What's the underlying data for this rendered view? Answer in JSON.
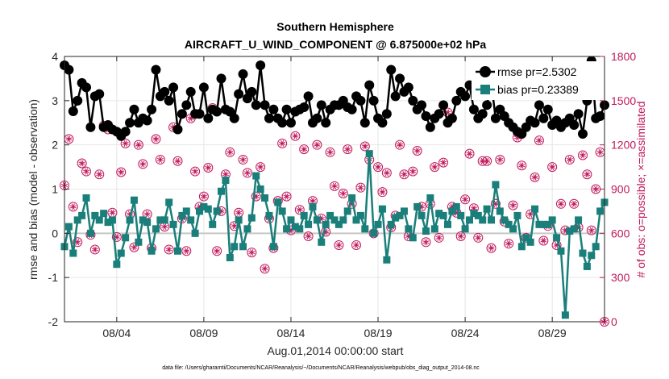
{
  "chart_data": {
    "type": "line",
    "title": "Southern Hemisphere",
    "subtitle": "AIRCRAFT_U_WIND_COMPONENT @ 6.875000e+02 hPa",
    "xlabel": "Aug.01,2014 00:00:00 start",
    "ylabel": "rmse and bias (model - observation)",
    "y2label": "# of obs: o=possible; ×=assimilated",
    "footnote": "data file: /Users/gharamti/Documents/NCAR/Reanalysis/~/Documents/NCAR/Reanalysis/webpub/obs_diag_output_2014-08.nc",
    "x_unit": "days since Aug.01,2014 00:00:00",
    "xlim": [
      0.0,
      31.0
    ],
    "ylim": [
      -2,
      4
    ],
    "y2lim": [
      0,
      1800
    ],
    "x_ticks": [
      3,
      8,
      13,
      18,
      23,
      28
    ],
    "x_tick_labels": [
      "08/04",
      "08/09",
      "08/14",
      "08/19",
      "08/24",
      "08/29"
    ],
    "y_ticks": [
      -2,
      -1,
      0,
      1,
      2,
      3,
      4
    ],
    "y_tick_labels": [
      "-2",
      "-1",
      "0",
      "1",
      "2",
      "3",
      "4"
    ],
    "y2_ticks": [
      0,
      300,
      600,
      900,
      1200,
      1500,
      1800
    ],
    "y2_tick_labels": [
      "0",
      "300",
      "600",
      "900",
      "1200",
      "1500",
      "1800"
    ],
    "zero_line": 0,
    "legend": {
      "position": "top-right",
      "entries": [
        "rmse pr=2.5302",
        "bias pr=0.23389"
      ]
    },
    "x": [
      0.0,
      0.25,
      0.5,
      0.75,
      1.0,
      1.25,
      1.5,
      1.75,
      2.0,
      2.25,
      2.5,
      2.75,
      3.0,
      3.25,
      3.5,
      3.75,
      4.0,
      4.25,
      4.5,
      4.75,
      5.0,
      5.25,
      5.5,
      5.75,
      6.0,
      6.25,
      6.5,
      6.75,
      7.0,
      7.25,
      7.5,
      7.75,
      8.0,
      8.25,
      8.5,
      8.75,
      9.0,
      9.25,
      9.5,
      9.75,
      10.0,
      10.25,
      10.5,
      10.75,
      11.0,
      11.25,
      11.5,
      11.75,
      12.0,
      12.25,
      12.5,
      12.75,
      13.0,
      13.25,
      13.5,
      13.75,
      14.0,
      14.25,
      14.5,
      14.75,
      15.0,
      15.25,
      15.5,
      15.75,
      16.0,
      16.25,
      16.5,
      16.75,
      17.0,
      17.25,
      17.5,
      17.75,
      18.0,
      18.25,
      18.5,
      18.75,
      19.0,
      19.25,
      19.5,
      19.75,
      20.0,
      20.25,
      20.5,
      20.75,
      21.0,
      21.25,
      21.5,
      21.75,
      22.0,
      22.25,
      22.5,
      22.75,
      23.0,
      23.25,
      23.5,
      23.75,
      24.0,
      24.25,
      24.5,
      24.75,
      25.0,
      25.25,
      25.5,
      25.75,
      26.0,
      26.25,
      26.5,
      26.75,
      27.0,
      27.25,
      27.5,
      27.75,
      28.0,
      28.25,
      28.5,
      28.75,
      29.0,
      29.25,
      29.5,
      29.75,
      30.0,
      30.25,
      30.5,
      30.75,
      31.0
    ],
    "series": [
      {
        "name": "rmse pr=2.5302",
        "axis": "left",
        "color": "#000000",
        "marker": "circle",
        "values": [
          3.8,
          3.7,
          2.76,
          3.0,
          3.4,
          3.3,
          2.4,
          3.1,
          3.15,
          2.4,
          2.45,
          2.35,
          2.3,
          2.2,
          2.3,
          2.5,
          2.8,
          2.5,
          2.6,
          2.55,
          2.8,
          3.7,
          3.1,
          3.2,
          3.0,
          3.3,
          2.35,
          2.7,
          2.9,
          3.2,
          2.7,
          2.7,
          3.3,
          2.6,
          2.8,
          2.75,
          3.5,
          2.8,
          2.75,
          2.6,
          3.15,
          3.6,
          3.05,
          3.2,
          2.9,
          3.8,
          2.9,
          2.6,
          2.8,
          2.6,
          2.5,
          2.8,
          2.5,
          2.75,
          2.8,
          2.85,
          3.1,
          2.5,
          2.6,
          2.9,
          2.5,
          2.8,
          2.9,
          2.9,
          3.0,
          2.85,
          2.8,
          3.1,
          3.0,
          2.5,
          3.35,
          3.0,
          2.6,
          2.5,
          2.7,
          3.7,
          3.1,
          3.5,
          3.2,
          3.3,
          3.0,
          2.8,
          2.9,
          2.65,
          2.4,
          2.6,
          2.7,
          2.9,
          2.5,
          2.6,
          3.0,
          3.2,
          3.1,
          3.35,
          2.8,
          2.6,
          2.7,
          2.9,
          3.4,
          2.6,
          2.8,
          2.65,
          2.5,
          2.4,
          2.3,
          2.25,
          2.4,
          2.55,
          2.5,
          2.9,
          2.6,
          2.8,
          2.45,
          2.55,
          2.4,
          2.5,
          2.6,
          2.45,
          2.7,
          2.25,
          3.0,
          3.9,
          2.6,
          2.65,
          2.9
        ]
      },
      {
        "name": "bias pr=0.23389",
        "axis": "left",
        "color": "#1a7f7a",
        "marker": "square",
        "values": [
          -0.3,
          0.15,
          -0.45,
          0.3,
          0.4,
          0.8,
          0.0,
          0.4,
          0.3,
          0.45,
          0.25,
          0.3,
          -0.7,
          -0.45,
          -0.1,
          0.3,
          0.75,
          -0.2,
          0.3,
          0.25,
          -0.4,
          0.1,
          0.3,
          0.3,
          0.7,
          0.2,
          -0.4,
          0.4,
          0.5,
          0.3,
          0.0,
          0.5,
          0.6,
          0.55,
          0.2,
          0.5,
          0.95,
          1.2,
          -0.55,
          -0.3,
          0.3,
          -0.3,
          0.1,
          0.35,
          1.3,
          1.0,
          0.8,
          0.4,
          -0.3,
          0.7,
          0.5,
          0.1,
          0.3,
          0.15,
          0.1,
          0.4,
          0.2,
          0.6,
          0.3,
          -0.2,
          0.2,
          0.4,
          0.3,
          0.2,
          0.3,
          0.5,
          0.8,
          0.3,
          0.4,
          0.1,
          1.8,
          0.0,
          0.2,
          0.55,
          -0.6,
          0.2,
          0.35,
          0.4,
          0.5,
          0.1,
          -0.1,
          0.6,
          0.4,
          0.05,
          0.8,
          0.1,
          0.45,
          0.4,
          0.2,
          0.5,
          0.6,
          0.4,
          0.1,
          0.3,
          0.45,
          0.4,
          0.3,
          0.55,
          0.3,
          1.1,
          0.5,
          0.3,
          0.2,
          0.1,
          0.4,
          -0.3,
          -0.1,
          -0.2,
          0.55,
          0.2,
          0.2,
          0.2,
          0.3,
          -0.1,
          -0.4,
          -1.85,
          0.05,
          0.1,
          0.3,
          -0.45,
          -0.75,
          -0.5,
          -0.3,
          0.5,
          0.7
        ]
      },
      {
        "name": "# of obs possible",
        "axis": "right",
        "color": "#c0185b",
        "marker": "open-circle",
        "values": [
          925,
          1240,
          780,
          540,
          1075,
          1020,
          590,
          490,
          1000,
          1330,
          1305,
          740,
          575,
          1015,
          1210,
          730,
          505,
          1200,
          1070,
          730,
          500,
          1240,
          1100,
          645,
          490,
          1320,
          1090,
          700,
          480,
          1380,
          1020,
          780,
          850,
          1045,
          1450,
          480,
          750,
          1000,
          1150,
          650,
          740,
          1100,
          1010,
          470,
          850,
          1050,
          360,
          700,
          500,
          820,
          1210,
          850,
          620,
          1260,
          760,
          1170,
          580,
          820,
          1200,
          700,
          610,
          1150,
          920,
          520,
          870,
          1170,
          800,
          520,
          910,
          1190,
          1100,
          600,
          1050,
          880,
          1010,
          640,
          720,
          1200,
          1000,
          580,
          1020,
          1160,
          780,
          540,
          800,
          1050,
          570,
          1080,
          1420,
          780,
          740,
          580,
          830,
          1140,
          770,
          570,
          1090,
          1090,
          500,
          800,
          1100,
          680,
          530,
          790,
          1250,
          1060,
          570,
          730,
          980,
          1230,
          550,
          650,
          1050,
          520,
          800,
          620,
          1100,
          800,
          640,
          1130,
          1000,
          620,
          900,
          1150,
          0
        ]
      },
      {
        "name": "# of obs assimilated",
        "axis": "right",
        "color": "#c0185b",
        "marker": "asterisk",
        "values": [
          925,
          1240,
          780,
          540,
          1075,
          1020,
          590,
          490,
          1000,
          1330,
          1305,
          740,
          575,
          1015,
          1210,
          730,
          505,
          1200,
          1070,
          730,
          500,
          1240,
          1100,
          645,
          490,
          1320,
          1090,
          700,
          480,
          1380,
          1020,
          780,
          850,
          1045,
          1450,
          480,
          750,
          1000,
          1150,
          650,
          740,
          1100,
          1010,
          470,
          850,
          1050,
          360,
          700,
          500,
          820,
          1210,
          850,
          620,
          1260,
          760,
          1170,
          580,
          820,
          1200,
          700,
          610,
          1150,
          920,
          520,
          870,
          1170,
          800,
          520,
          910,
          1190,
          1100,
          600,
          1050,
          880,
          1010,
          640,
          720,
          1200,
          1000,
          580,
          1020,
          1160,
          780,
          540,
          800,
          1050,
          570,
          1080,
          1420,
          780,
          740,
          580,
          830,
          1140,
          770,
          570,
          1090,
          1090,
          500,
          800,
          1100,
          680,
          530,
          790,
          1250,
          1060,
          570,
          730,
          980,
          1230,
          550,
          650,
          1050,
          520,
          800,
          620,
          1100,
          800,
          640,
          1130,
          1000,
          620,
          900,
          1150,
          0
        ]
      }
    ]
  }
}
